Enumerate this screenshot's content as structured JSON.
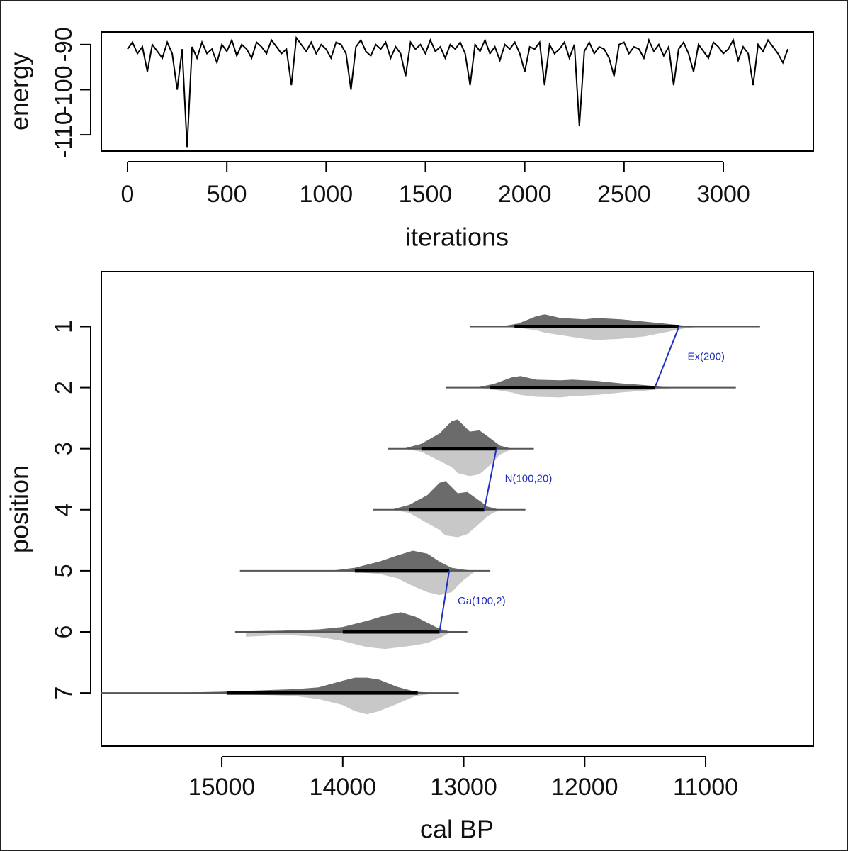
{
  "chart_data": [
    {
      "type": "line",
      "x_label": "iterations",
      "y_label": "energy",
      "xlim": [
        -132,
        3453
      ],
      "xticks": [
        0,
        500,
        1000,
        1500,
        2000,
        2500,
        3000
      ],
      "ylim": [
        -113.6,
        -87.2
      ],
      "yticks": [
        -90,
        -100,
        -110
      ],
      "color": "#000000",
      "x": [
        0,
        25,
        50,
        75,
        100,
        125,
        150,
        175,
        200,
        225,
        250,
        275,
        300,
        325,
        350,
        375,
        400,
        425,
        450,
        475,
        500,
        525,
        550,
        575,
        600,
        625,
        650,
        675,
        700,
        725,
        750,
        775,
        800,
        825,
        850,
        875,
        900,
        925,
        950,
        975,
        1000,
        1025,
        1050,
        1075,
        1100,
        1125,
        1150,
        1175,
        1200,
        1225,
        1250,
        1275,
        1300,
        1325,
        1350,
        1375,
        1400,
        1425,
        1450,
        1475,
        1500,
        1525,
        1550,
        1575,
        1600,
        1625,
        1650,
        1675,
        1700,
        1725,
        1750,
        1775,
        1800,
        1825,
        1850,
        1875,
        1900,
        1925,
        1950,
        1975,
        2000,
        2025,
        2050,
        2075,
        2100,
        2125,
        2150,
        2175,
        2200,
        2225,
        2250,
        2275,
        2300,
        2325,
        2350,
        2375,
        2400,
        2425,
        2450,
        2475,
        2500,
        2525,
        2550,
        2575,
        2600,
        2625,
        2650,
        2675,
        2700,
        2725,
        2750,
        2775,
        2800,
        2825,
        2850,
        2875,
        2900,
        2925,
        2950,
        2975,
        3000,
        3025,
        3050,
        3075,
        3100,
        3125,
        3150,
        3175,
        3200,
        3225,
        3250,
        3275,
        3300,
        3325
      ],
      "values": [
        -91,
        -89.5,
        -92,
        -90.5,
        -96,
        -90,
        -91.5,
        -93,
        -89.5,
        -92,
        -100,
        -91,
        -112.7,
        -90.5,
        -93,
        -89.5,
        -92,
        -91,
        -94,
        -90,
        -91.5,
        -89,
        -92.5,
        -90,
        -91,
        -93,
        -89.5,
        -90.5,
        -92,
        -89,
        -90.5,
        -92,
        -91,
        -99,
        -88.5,
        -90,
        -91.5,
        -89.5,
        -92,
        -90,
        -91,
        -93,
        -89.5,
        -90,
        -92,
        -100,
        -90.5,
        -89,
        -91.5,
        -92.5,
        -90,
        -91,
        -89.5,
        -93,
        -90.5,
        -92,
        -97,
        -89.5,
        -91,
        -90,
        -92,
        -89,
        -91.5,
        -90.5,
        -93,
        -90,
        -91,
        -89.5,
        -92,
        -99,
        -90,
        -91.5,
        -89,
        -92,
        -90.5,
        -93.5,
        -90,
        -91,
        -89.5,
        -92,
        -96,
        -90.5,
        -91,
        -89.5,
        -99,
        -90,
        -92,
        -91,
        -89.5,
        -93,
        -90,
        -108,
        -91.5,
        -89.5,
        -92,
        -90.5,
        -91,
        -93,
        -97,
        -90,
        -89.5,
        -92,
        -90.5,
        -91,
        -93,
        -89,
        -91.5,
        -90,
        -92.5,
        -90.5,
        -99,
        -91,
        -89.5,
        -92,
        -96,
        -90,
        -91.5,
        -93,
        -89.5,
        -90.5,
        -92,
        -91,
        -89,
        -93.5,
        -90.5,
        -92,
        -99,
        -90,
        -91.5,
        -89,
        -90.5,
        -92,
        -94,
        -91
      ]
    },
    {
      "type": "ridge",
      "x_label": "cal BP",
      "y_label": "position",
      "xlim": [
        15996,
        10110
      ],
      "xticks": [
        15000,
        14000,
        13000,
        12000,
        11000
      ],
      "ylim": [
        0.1,
        7.87
      ],
      "yticks": [
        1,
        2,
        3,
        4,
        5,
        6,
        7
      ],
      "posterior_color": "#6b6b6b",
      "prior_color": "#c8c8c8",
      "link_color": "#1f2fbf",
      "series": [
        {
          "position": 1,
          "range": [
            12950,
            10550
          ],
          "hpd": [
            12580,
            11220
          ],
          "x": [
            12700,
            12550,
            12400,
            12330,
            12200,
            12000,
            11900,
            11700,
            11500,
            11300,
            11150,
            11000
          ],
          "posterior": [
            0,
            0.05,
            0.17,
            0.2,
            0.14,
            0.12,
            0.14,
            0.12,
            0.08,
            0.04,
            0.01,
            0
          ],
          "prior": [
            0,
            0.02,
            0.06,
            0.1,
            0.14,
            0.2,
            0.22,
            0.2,
            0.16,
            0.08,
            0.02,
            0
          ]
        },
        {
          "position": 2,
          "range": [
            13150,
            10750
          ],
          "hpd": [
            12780,
            11420
          ],
          "x": [
            12900,
            12750,
            12600,
            12530,
            12400,
            12200,
            12100,
            11900,
            11700,
            11500,
            11350,
            11200
          ],
          "posterior": [
            0,
            0.06,
            0.17,
            0.19,
            0.13,
            0.12,
            0.13,
            0.11,
            0.07,
            0.04,
            0.01,
            0
          ],
          "prior": [
            0,
            0.03,
            0.08,
            0.12,
            0.15,
            0.16,
            0.14,
            0.12,
            0.08,
            0.05,
            0.02,
            0
          ]
        },
        {
          "position": 3,
          "range": [
            13630,
            12420
          ],
          "hpd": [
            13350,
            12730
          ],
          "x": [
            13500,
            13350,
            13200,
            13100,
            13050,
            12950,
            12870,
            12800,
            12700,
            12600
          ],
          "posterior": [
            0,
            0.08,
            0.25,
            0.45,
            0.48,
            0.28,
            0.3,
            0.2,
            0.05,
            0
          ],
          "prior": [
            0,
            0.05,
            0.2,
            0.3,
            0.4,
            0.45,
            0.42,
            0.3,
            0.1,
            0
          ]
        },
        {
          "position": 4,
          "range": [
            13750,
            12490
          ],
          "hpd": [
            13450,
            12830
          ],
          "x": [
            13600,
            13450,
            13300,
            13200,
            13150,
            13050,
            12970,
            12900,
            12800,
            12700
          ],
          "posterior": [
            0,
            0.08,
            0.24,
            0.44,
            0.47,
            0.27,
            0.29,
            0.19,
            0.05,
            0
          ],
          "prior": [
            0,
            0.05,
            0.22,
            0.33,
            0.42,
            0.45,
            0.4,
            0.28,
            0.1,
            0
          ]
        },
        {
          "position": 5,
          "range": [
            14850,
            12780
          ],
          "hpd": [
            13900,
            13120
          ],
          "x": [
            14100,
            13900,
            13700,
            13550,
            13420,
            13300,
            13200,
            13100,
            13000,
            12900
          ],
          "posterior": [
            0,
            0.05,
            0.15,
            0.25,
            0.33,
            0.28,
            0.15,
            0.05,
            0.02,
            0
          ],
          "prior": [
            0,
            0.02,
            0.05,
            0.12,
            0.25,
            0.35,
            0.4,
            0.35,
            0.15,
            0
          ]
        },
        {
          "position": 6,
          "range": [
            14890,
            12970
          ],
          "hpd": [
            14000,
            13200
          ],
          "x": [
            14800,
            14500,
            14200,
            14000,
            13800,
            13650,
            13520,
            13400,
            13300,
            13200,
            13100
          ],
          "posterior": [
            0.01,
            0.02,
            0.04,
            0.08,
            0.18,
            0.27,
            0.32,
            0.25,
            0.15,
            0.05,
            0
          ],
          "prior": [
            0.08,
            0.05,
            0.08,
            0.15,
            0.25,
            0.28,
            0.25,
            0.22,
            0.18,
            0.1,
            0
          ]
        },
        {
          "position": 7,
          "range": [
            15996,
            13040
          ],
          "hpd": [
            14960,
            13380
          ],
          "x": [
            15500,
            15000,
            14700,
            14400,
            14200,
            14000,
            13900,
            13800,
            13700,
            13550,
            13400,
            13200
          ],
          "posterior": [
            0,
            0.02,
            0.04,
            0.06,
            0.09,
            0.2,
            0.25,
            0.25,
            0.22,
            0.1,
            0.02,
            0
          ],
          "prior": [
            0,
            0.01,
            0.03,
            0.05,
            0.1,
            0.2,
            0.3,
            0.35,
            0.3,
            0.18,
            0.05,
            0
          ]
        }
      ],
      "links": [
        {
          "label": "Ex(200)",
          "positions": [
            1,
            2
          ]
        },
        {
          "label": "N(100,20)",
          "positions": [
            3,
            4
          ]
        },
        {
          "label": "Ga(100,2)",
          "positions": [
            5,
            6
          ]
        }
      ]
    }
  ]
}
